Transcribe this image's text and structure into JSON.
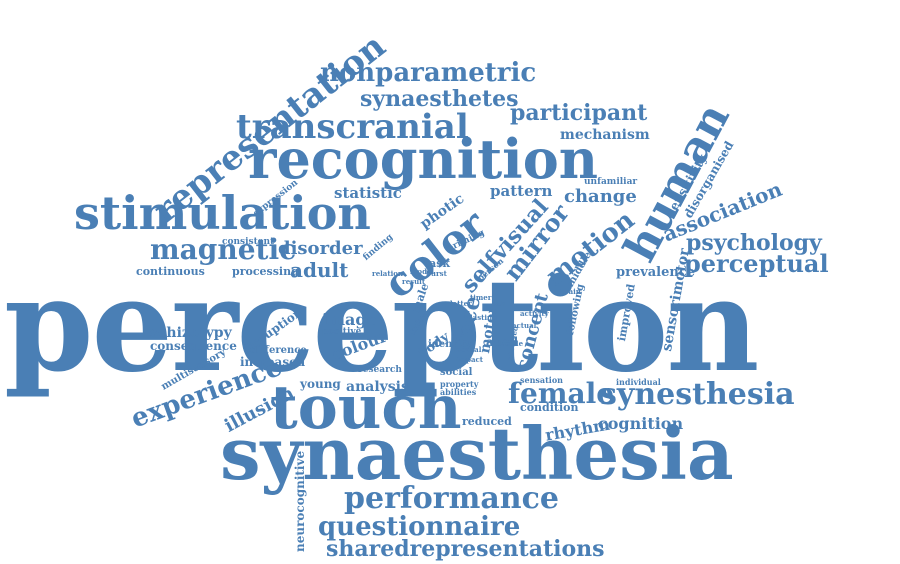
{
  "color": "#4a7fb5",
  "words": [
    "perception",
    "synaesthesia",
    "recognition",
    "touch",
    "stimulation",
    "transcranial",
    "representation",
    "nonparametric",
    "synaesthetes",
    "participant",
    "mechanism",
    "human",
    "color",
    "association",
    "magnetic",
    "psychology",
    "perceptual",
    "performance",
    "questionnaire",
    "sharedrepresentations",
    "experience",
    "illusion",
    "synesthesia",
    "female",
    "cognition",
    "rhythm",
    "condition",
    "reduced",
    "motion",
    "mirror",
    "change",
    "selfvisual",
    "face",
    "concept",
    "motor",
    "sensorimotor",
    "improved",
    "prevalence",
    "statistic",
    "pattern",
    "photic",
    "disorder",
    "adult",
    "continuous",
    "processing",
    "consistent",
    "expression",
    "difference",
    "disruption",
    "increased",
    "schizotypy",
    "consequence",
    "multisensory",
    "image",
    "positive",
    "colour",
    "body",
    "identity",
    "aged",
    "social",
    "property",
    "abilities",
    "analysis",
    "young",
    "research",
    "neurocognitive",
    "sensitivity",
    "disorganised",
    "unfamiliar",
    "task",
    "finding",
    "priming",
    "person",
    "middle",
    "following",
    "individual",
    "sensation",
    "linked",
    "male",
    "letter",
    "mental",
    "impact",
    "result",
    "relation",
    "model",
    "burst",
    "timer",
    "ash",
    "lasting",
    "observed",
    "activity",
    "actual",
    "tactile",
    "brain"
  ]
}
